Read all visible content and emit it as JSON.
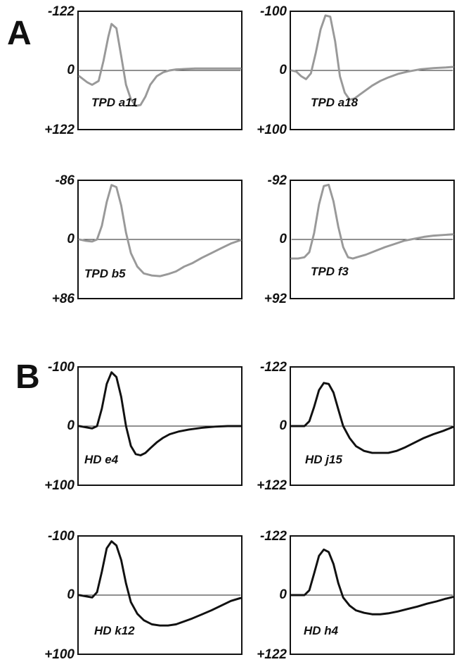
{
  "panels": {
    "A": {
      "letter": "A"
    },
    "B": {
      "letter": "B"
    }
  },
  "colors": {
    "panel_a_trace": "#999999",
    "panel_b_trace": "#111111",
    "zero_line": "#222222"
  },
  "chart_data": [
    {
      "type": "line",
      "panel": "A",
      "label": "TPD a11",
      "y_top": "-122",
      "y_zero": "0",
      "y_bottom": "+122",
      "ylim": [
        -122,
        122
      ],
      "x": [
        0,
        0.05,
        0.08,
        0.12,
        0.15,
        0.18,
        0.2,
        0.23,
        0.26,
        0.29,
        0.32,
        0.35,
        0.38,
        0.41,
        0.44,
        0.48,
        0.52,
        0.56,
        0.6,
        0.65,
        0.72,
        0.8,
        0.9,
        1.0
      ],
      "values": [
        12,
        25,
        30,
        22,
        -20,
        -70,
        -97,
        -88,
        -30,
        30,
        60,
        74,
        72,
        55,
        30,
        12,
        4,
        0,
        -2,
        -3,
        -4,
        -4,
        -4,
        -4
      ]
    },
    {
      "type": "line",
      "panel": "A",
      "label": "TPD a18",
      "y_top": "-100",
      "y_zero": "0",
      "y_bottom": "+100",
      "ylim": [
        -100,
        100
      ],
      "x": [
        0,
        0.03,
        0.06,
        0.09,
        0.12,
        0.15,
        0.18,
        0.21,
        0.24,
        0.27,
        0.3,
        0.33,
        0.36,
        0.39,
        0.42,
        0.46,
        0.5,
        0.55,
        0.6,
        0.66,
        0.72,
        0.8,
        0.88,
        0.95,
        1.0
      ],
      "values": [
        0,
        2,
        10,
        15,
        5,
        -30,
        -70,
        -94,
        -92,
        -50,
        10,
        38,
        50,
        48,
        42,
        34,
        26,
        18,
        12,
        6,
        2,
        -2,
        -4,
        -5,
        -6
      ]
    },
    {
      "type": "line",
      "panel": "A",
      "label": "TPD b5",
      "y_top": "-86",
      "y_zero": "0",
      "y_bottom": "+86",
      "ylim": [
        -86,
        86
      ],
      "x": [
        0,
        0.04,
        0.08,
        0.11,
        0.14,
        0.17,
        0.2,
        0.23,
        0.26,
        0.29,
        0.32,
        0.36,
        0.4,
        0.45,
        0.5,
        0.55,
        0.6,
        0.65,
        0.7,
        0.76,
        0.82,
        0.88,
        0.94,
        1.0
      ],
      "values": [
        0,
        2,
        3,
        0,
        -20,
        -55,
        -80,
        -77,
        -50,
        -10,
        20,
        40,
        50,
        53,
        54,
        51,
        47,
        40,
        35,
        27,
        20,
        13,
        6,
        1
      ]
    },
    {
      "type": "line",
      "panel": "A",
      "label": "TPD f3",
      "y_top": "-92",
      "y_zero": "0",
      "y_bottom": "+92",
      "ylim": [
        -92,
        92
      ],
      "x": [
        0,
        0.04,
        0.08,
        0.11,
        0.14,
        0.17,
        0.2,
        0.23,
        0.26,
        0.29,
        0.32,
        0.35,
        0.38,
        0.42,
        0.46,
        0.52,
        0.58,
        0.64,
        0.7,
        0.76,
        0.82,
        0.88,
        0.94,
        1.0
      ],
      "values": [
        30,
        30,
        28,
        20,
        -10,
        -55,
        -84,
        -86,
        -60,
        -20,
        12,
        28,
        30,
        27,
        24,
        18,
        12,
        7,
        2,
        -1,
        -4,
        -6,
        -7,
        -8
      ]
    },
    {
      "type": "line",
      "panel": "B",
      "label": "HD e4",
      "y_top": "-100",
      "y_zero": "0",
      "y_bottom": "+100",
      "ylim": [
        -100,
        100
      ],
      "x": [
        0,
        0.04,
        0.08,
        0.11,
        0.14,
        0.17,
        0.2,
        0.23,
        0.26,
        0.29,
        0.32,
        0.35,
        0.38,
        0.41,
        0.44,
        0.48,
        0.52,
        0.56,
        0.62,
        0.68,
        0.76,
        0.84,
        0.92,
        1.0
      ],
      "values": [
        0,
        2,
        4,
        0,
        -30,
        -72,
        -92,
        -84,
        -50,
        0,
        34,
        48,
        50,
        46,
        38,
        28,
        20,
        14,
        9,
        6,
        3,
        1,
        0,
        0
      ]
    },
    {
      "type": "line",
      "panel": "B",
      "label": "HD j15",
      "y_top": "-122",
      "y_zero": "0",
      "y_bottom": "+122",
      "ylim": [
        -122,
        122
      ],
      "x": [
        0,
        0.04,
        0.08,
        0.11,
        0.14,
        0.17,
        0.2,
        0.23,
        0.26,
        0.29,
        0.32,
        0.36,
        0.4,
        0.45,
        0.5,
        0.55,
        0.6,
        0.65,
        0.7,
        0.76,
        0.82,
        0.88,
        0.94,
        1.0
      ],
      "values": [
        0,
        0,
        0,
        -10,
        -40,
        -75,
        -90,
        -88,
        -70,
        -35,
        0,
        25,
        42,
        52,
        56,
        56,
        56,
        52,
        45,
        35,
        25,
        17,
        10,
        2
      ]
    },
    {
      "type": "line",
      "panel": "B",
      "label": "HD k12",
      "y_top": "-100",
      "y_zero": "0",
      "y_bottom": "+100",
      "ylim": [
        -100,
        100
      ],
      "x": [
        0,
        0.04,
        0.08,
        0.11,
        0.14,
        0.17,
        0.2,
        0.23,
        0.26,
        0.29,
        0.32,
        0.36,
        0.4,
        0.45,
        0.5,
        0.55,
        0.6,
        0.65,
        0.7,
        0.76,
        0.82,
        0.88,
        0.94,
        1.0
      ],
      "values": [
        0,
        2,
        4,
        -5,
        -40,
        -80,
        -92,
        -85,
        -60,
        -20,
        12,
        32,
        43,
        50,
        52,
        52,
        50,
        45,
        40,
        33,
        26,
        18,
        10,
        5
      ]
    },
    {
      "type": "line",
      "panel": "B",
      "label": "HD h4",
      "y_top": "-122",
      "y_zero": "0",
      "y_bottom": "+122",
      "ylim": [
        -122,
        122
      ],
      "x": [
        0,
        0.04,
        0.08,
        0.11,
        0.14,
        0.17,
        0.2,
        0.23,
        0.26,
        0.29,
        0.32,
        0.36,
        0.4,
        0.45,
        0.5,
        0.55,
        0.6,
        0.66,
        0.72,
        0.78,
        0.84,
        0.9,
        0.95,
        1.0
      ],
      "values": [
        0,
        0,
        0,
        -10,
        -45,
        -82,
        -95,
        -90,
        -65,
        -25,
        5,
        22,
        32,
        37,
        40,
        40,
        38,
        34,
        29,
        24,
        18,
        13,
        8,
        4
      ]
    }
  ]
}
